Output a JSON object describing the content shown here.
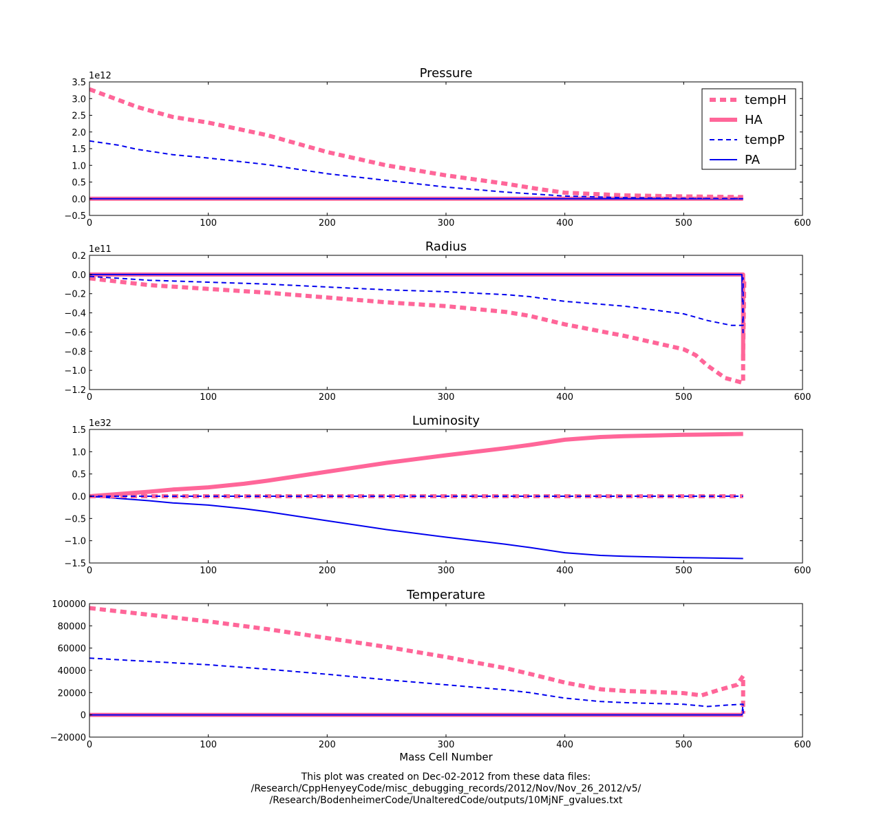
{
  "colors": {
    "pink": "#ff6699",
    "blue": "#0000ee"
  },
  "chart_data": [
    {
      "type": "line",
      "title": "Pressure",
      "xlabel": "",
      "ylabel": "",
      "multiplier": "1e12",
      "xlim": [
        0,
        600
      ],
      "ylim": [
        -0.5,
        3.5
      ],
      "xticks": [
        "0",
        "100",
        "200",
        "300",
        "400",
        "500",
        "600"
      ],
      "yticks": [
        "−0.5",
        "0.0",
        "0.5",
        "1.0",
        "1.5",
        "2.0",
        "2.5",
        "3.0",
        "3.5"
      ],
      "ytick_values": [
        -0.5,
        0,
        0.5,
        1,
        1.5,
        2,
        2.5,
        3,
        3.5
      ],
      "legend": {
        "position": "top-right",
        "entries": [
          "tempH",
          "HA",
          "tempP",
          "PA"
        ]
      },
      "series": [
        {
          "name": "tempH",
          "x": [
            0,
            25,
            40,
            70,
            100,
            150,
            200,
            250,
            300,
            350,
            380,
            400,
            450,
            500,
            550
          ],
          "y": [
            3.28,
            2.95,
            2.75,
            2.45,
            2.28,
            1.9,
            1.4,
            1.0,
            0.7,
            0.45,
            0.28,
            0.18,
            0.1,
            0.07,
            0.05
          ]
        },
        {
          "name": "HA",
          "x": [
            0,
            550
          ],
          "y": [
            0.0,
            0.0
          ]
        },
        {
          "name": "tempP",
          "x": [
            0,
            25,
            40,
            70,
            100,
            150,
            200,
            250,
            300,
            350,
            400,
            450,
            500,
            550
          ],
          "y": [
            1.73,
            1.6,
            1.48,
            1.32,
            1.22,
            1.02,
            0.75,
            0.55,
            0.35,
            0.2,
            0.08,
            0.03,
            0.01,
            0.0
          ]
        },
        {
          "name": "PA",
          "x": [
            0,
            550
          ],
          "y": [
            0.0,
            0.0
          ]
        }
      ]
    },
    {
      "type": "line",
      "title": "Radius",
      "xlabel": "",
      "ylabel": "",
      "multiplier": "1e11",
      "xlim": [
        0,
        600
      ],
      "ylim": [
        -1.2,
        0.2
      ],
      "xticks": [
        "0",
        "100",
        "200",
        "300",
        "400",
        "500",
        "600"
      ],
      "yticks": [
        "−1.2",
        "−1.0",
        "−0.8",
        "−0.6",
        "−0.4",
        "−0.2",
        "0.0",
        "0.2"
      ],
      "ytick_values": [
        -1.2,
        -1.0,
        -0.8,
        -0.6,
        -0.4,
        -0.2,
        0.0,
        0.2
      ],
      "series": [
        {
          "name": "tempH",
          "x": [
            0,
            50,
            100,
            150,
            200,
            250,
            300,
            350,
            370,
            400,
            450,
            500,
            510,
            520,
            535,
            550,
            550,
            551
          ],
          "y": [
            -0.04,
            -0.11,
            -0.15,
            -0.19,
            -0.24,
            -0.29,
            -0.33,
            -0.39,
            -0.43,
            -0.52,
            -0.64,
            -0.78,
            -0.84,
            -0.95,
            -1.08,
            -1.13,
            -0.85,
            -0.05
          ]
        },
        {
          "name": "HA",
          "x": [
            0,
            550,
            550
          ],
          "y": [
            0.0,
            0.0,
            -0.9
          ]
        },
        {
          "name": "tempP",
          "x": [
            0,
            50,
            100,
            150,
            200,
            250,
            300,
            350,
            370,
            400,
            450,
            500,
            520,
            540,
            550,
            550
          ],
          "y": [
            -0.02,
            -0.06,
            -0.08,
            -0.1,
            -0.13,
            -0.16,
            -0.18,
            -0.21,
            -0.23,
            -0.28,
            -0.33,
            -0.41,
            -0.48,
            -0.53,
            -0.53,
            -0.03
          ]
        },
        {
          "name": "PA",
          "x": [
            0,
            549,
            550
          ],
          "y": [
            0.0,
            0.0,
            -0.65
          ]
        }
      ]
    },
    {
      "type": "line",
      "title": "Luminosity",
      "xlabel": "",
      "ylabel": "",
      "multiplier": "1e32",
      "xlim": [
        0,
        600
      ],
      "ylim": [
        -1.5,
        1.5
      ],
      "xticks": [
        "0",
        "100",
        "200",
        "300",
        "400",
        "500",
        "600"
      ],
      "yticks": [
        "−1.5",
        "−1.0",
        "−0.5",
        "0.0",
        "0.5",
        "1.0",
        "1.5"
      ],
      "ytick_values": [
        -1.5,
        -1.0,
        -0.5,
        0.0,
        0.5,
        1.0,
        1.5
      ],
      "series": [
        {
          "name": "tempH",
          "x": [
            0,
            550
          ],
          "y": [
            0.0,
            0.0
          ]
        },
        {
          "name": "HA",
          "x": [
            0,
            25,
            50,
            70,
            100,
            130,
            150,
            200,
            250,
            300,
            350,
            370,
            400,
            430,
            450,
            500,
            550
          ],
          "y": [
            0.0,
            0.05,
            0.1,
            0.15,
            0.2,
            0.28,
            0.35,
            0.55,
            0.75,
            0.92,
            1.08,
            1.15,
            1.27,
            1.33,
            1.35,
            1.38,
            1.4
          ]
        },
        {
          "name": "tempP",
          "x": [
            0,
            550
          ],
          "y": [
            0.0,
            0.0
          ]
        },
        {
          "name": "PA",
          "x": [
            0,
            25,
            50,
            70,
            100,
            130,
            150,
            200,
            250,
            300,
            350,
            370,
            400,
            430,
            450,
            500,
            550
          ],
          "y": [
            0.0,
            -0.05,
            -0.1,
            -0.15,
            -0.2,
            -0.28,
            -0.35,
            -0.55,
            -0.75,
            -0.92,
            -1.08,
            -1.15,
            -1.27,
            -1.33,
            -1.35,
            -1.38,
            -1.4
          ]
        }
      ]
    },
    {
      "type": "line",
      "title": "Temperature",
      "xlabel": "Mass Cell Number",
      "ylabel": "",
      "multiplier": "",
      "xlim": [
        0,
        600
      ],
      "ylim": [
        -20000,
        100000
      ],
      "xticks": [
        "0",
        "100",
        "200",
        "300",
        "400",
        "500",
        "600"
      ],
      "yticks": [
        "−20000",
        "0",
        "20000",
        "40000",
        "60000",
        "80000",
        "100000"
      ],
      "ytick_values": [
        -20000,
        0,
        20000,
        40000,
        60000,
        80000,
        100000
      ],
      "series": [
        {
          "name": "tempH",
          "x": [
            0,
            50,
            100,
            150,
            200,
            250,
            300,
            350,
            370,
            400,
            430,
            450,
            500,
            515,
            530,
            545,
            550,
            550
          ],
          "y": [
            96000,
            90000,
            84000,
            77000,
            69000,
            61000,
            52000,
            42000,
            37000,
            29000,
            23000,
            21500,
            19500,
            17500,
            22500,
            27000,
            35000,
            1000
          ]
        },
        {
          "name": "HA",
          "x": [
            0,
            550
          ],
          "y": [
            0,
            0
          ]
        },
        {
          "name": "tempP",
          "x": [
            0,
            50,
            100,
            150,
            200,
            250,
            300,
            350,
            370,
            400,
            430,
            450,
            500,
            520,
            540,
            550,
            550
          ],
          "y": [
            51000,
            48000,
            45000,
            41000,
            36500,
            31500,
            27000,
            22500,
            20000,
            15000,
            12000,
            11000,
            9500,
            7500,
            9000,
            9500,
            1000
          ]
        },
        {
          "name": "PA",
          "x": [
            0,
            549,
            550
          ],
          "y": [
            0,
            0,
            10000
          ]
        }
      ]
    }
  ],
  "footer": {
    "line1": "This plot was created on Dec-02-2012 from these data files:",
    "line2": "/Research/CppHenyeyCode/misc_debugging_records/2012/Nov/Nov_26_2012/v5/",
    "line3": "/Research/BodenheimerCode/UnalteredCode/outputs/10MjNF_gvalues.txt"
  }
}
